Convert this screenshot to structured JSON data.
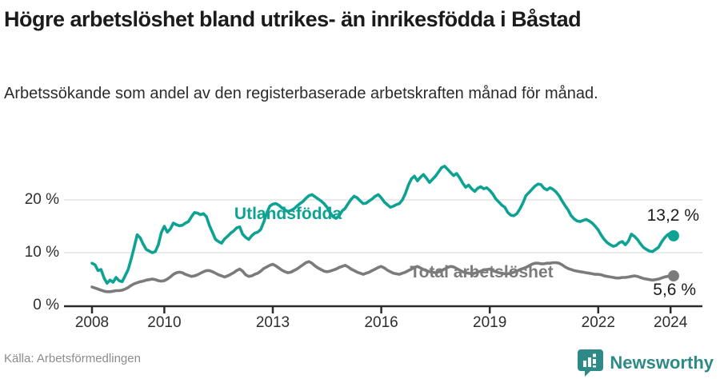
{
  "header": {
    "title": "Högre arbetslöshet bland utrikes- än inrikesfödda i Båstad",
    "subtitle": "Arbetssökande som andel av den registerbaserade arbetskraften månad för månad."
  },
  "footer": {
    "source": "Källa: Arbetsförmedlingen",
    "brand": "Newsworthy",
    "brand_icon": "bar-chart-pin-icon",
    "brand_color": "#2e8a87"
  },
  "chart_data": {
    "type": "line",
    "unit": "%",
    "grid": "horizontal-only",
    "x_axis": {
      "tick_years": [
        2008,
        2010,
        2013,
        2016,
        2019,
        2022,
        2024
      ],
      "start": 2008,
      "end": 2024.083,
      "frequency": "monthly"
    },
    "y_axis": {
      "ticks": [
        {
          "value": 0,
          "label": "0 %"
        },
        {
          "value": 10,
          "label": "10 %"
        },
        {
          "value": 20,
          "label": "20 %"
        }
      ],
      "gridlines": [
        10,
        20
      ],
      "range": [
        0,
        27
      ]
    },
    "series": [
      {
        "name": "Utlandsfödda",
        "color": "#0EA293",
        "end_label": "13,2 %",
        "end_value": 13.2,
        "start_year": 2008,
        "values": [
          8.0,
          7.7,
          6.6,
          6.8,
          5.2,
          4.2,
          4.8,
          4.4,
          5.3,
          4.7,
          4.5,
          5.6,
          6.8,
          8.8,
          11.0,
          13.4,
          12.8,
          11.6,
          10.6,
          10.3,
          10.0,
          10.2,
          11.5,
          13.8,
          15.0,
          13.9,
          14.5,
          15.6,
          15.3,
          15.1,
          15.2,
          15.6,
          15.9,
          16.8,
          17.6,
          17.5,
          17.2,
          17.4,
          16.8,
          15.1,
          13.8,
          12.5,
          12.1,
          11.8,
          12.6,
          13.1,
          13.7,
          14.1,
          14.7,
          14.9,
          13.5,
          12.9,
          12.5,
          13.2,
          13.7,
          13.9,
          14.4,
          15.8,
          17.5,
          18.8,
          19.2,
          19.3,
          19.0,
          18.5,
          18.1,
          17.8,
          18.0,
          18.3,
          18.8,
          19.3,
          19.7,
          20.3,
          20.8,
          21.0,
          20.6,
          20.2,
          19.8,
          19.3,
          18.6,
          17.6,
          16.8,
          16.5,
          17.0,
          17.9,
          18.4,
          19.3,
          20.1,
          20.7,
          20.4,
          19.8,
          19.3,
          19.4,
          19.8,
          20.2,
          20.7,
          21.0,
          20.4,
          19.6,
          19.1,
          18.6,
          18.8,
          19.1,
          19.3,
          20.0,
          21.2,
          22.8,
          24.0,
          24.5,
          23.6,
          24.3,
          24.8,
          24.1,
          23.3,
          23.9,
          24.5,
          25.3,
          26.1,
          26.4,
          25.8,
          25.2,
          24.6,
          25.0,
          24.2,
          23.2,
          22.4,
          22.8,
          22.1,
          21.6,
          22.2,
          22.5,
          22.1,
          22.3,
          21.8,
          21.1,
          20.2,
          19.6,
          19.0,
          18.6,
          17.6,
          17.1,
          17.0,
          17.4,
          18.3,
          19.4,
          20.8,
          21.4,
          22.0,
          22.6,
          23.0,
          22.9,
          22.2,
          21.9,
          22.3,
          22.0,
          21.5,
          20.8,
          19.8,
          18.9,
          18.1,
          17.0,
          16.4,
          16.0,
          15.9,
          16.1,
          16.3,
          16.0,
          15.6,
          15.0,
          14.3,
          13.3,
          12.5,
          11.9,
          11.5,
          11.2,
          11.4,
          11.9,
          12.1,
          11.5,
          12.2,
          13.5,
          13.1,
          12.5,
          11.7,
          11.0,
          10.6,
          10.3,
          10.2,
          10.6,
          11.0,
          12.0,
          12.8,
          13.4,
          13.7,
          13.2
        ]
      },
      {
        "name": "Total arbetslöshet",
        "color": "#7b7b7b",
        "end_label": "5,6 %",
        "end_value": 5.6,
        "start_year": 2008,
        "values": [
          3.5,
          3.3,
          3.1,
          2.9,
          2.7,
          2.6,
          2.6,
          2.7,
          2.8,
          2.8,
          2.9,
          3.1,
          3.4,
          3.8,
          4.1,
          4.3,
          4.5,
          4.6,
          4.8,
          4.9,
          5.0,
          4.9,
          4.7,
          4.6,
          4.7,
          5.0,
          5.4,
          5.9,
          6.2,
          6.3,
          6.2,
          5.9,
          5.7,
          5.5,
          5.6,
          5.8,
          6.1,
          6.4,
          6.6,
          6.6,
          6.4,
          6.1,
          5.8,
          5.6,
          5.4,
          5.6,
          5.9,
          6.2,
          6.6,
          6.9,
          6.5,
          5.8,
          5.5,
          5.6,
          5.9,
          6.1,
          6.5,
          7.0,
          7.3,
          7.6,
          7.8,
          7.5,
          7.1,
          6.7,
          6.4,
          6.2,
          6.3,
          6.6,
          6.9,
          7.3,
          7.7,
          8.1,
          8.3,
          8.0,
          7.5,
          7.1,
          6.8,
          6.5,
          6.4,
          6.5,
          6.7,
          6.9,
          7.2,
          7.4,
          7.6,
          7.3,
          6.9,
          6.6,
          6.3,
          6.1,
          5.9,
          6.1,
          6.3,
          6.6,
          6.9,
          7.2,
          7.4,
          7.1,
          6.7,
          6.4,
          6.1,
          6.0,
          5.9,
          6.1,
          6.3,
          6.6,
          6.9,
          7.2,
          7.4,
          7.1,
          6.8,
          6.6,
          6.4,
          6.3,
          6.2,
          6.4,
          6.6,
          6.9,
          7.2,
          7.4,
          7.3,
          7.0,
          6.7,
          6.4,
          6.2,
          6.1,
          6.0,
          6.1,
          6.3,
          6.5,
          6.7,
          6.8,
          6.9,
          6.6,
          6.4,
          6.2,
          6.1,
          6.0,
          6.0,
          6.1,
          6.3,
          6.5,
          6.8,
          7.0,
          7.2,
          7.5,
          7.8,
          8.0,
          8.0,
          7.9,
          7.9,
          8.0,
          8.0,
          8.1,
          8.1,
          8.0,
          7.7,
          7.3,
          7.0,
          6.8,
          6.6,
          6.5,
          6.4,
          6.3,
          6.2,
          6.1,
          6.0,
          5.9,
          5.9,
          5.8,
          5.6,
          5.5,
          5.4,
          5.3,
          5.2,
          5.2,
          5.3,
          5.3,
          5.4,
          5.5,
          5.6,
          5.5,
          5.3,
          5.1,
          5.0,
          4.9,
          4.8,
          4.9,
          5.0,
          5.2,
          5.4,
          5.5,
          5.6,
          5.6
        ]
      }
    ]
  }
}
